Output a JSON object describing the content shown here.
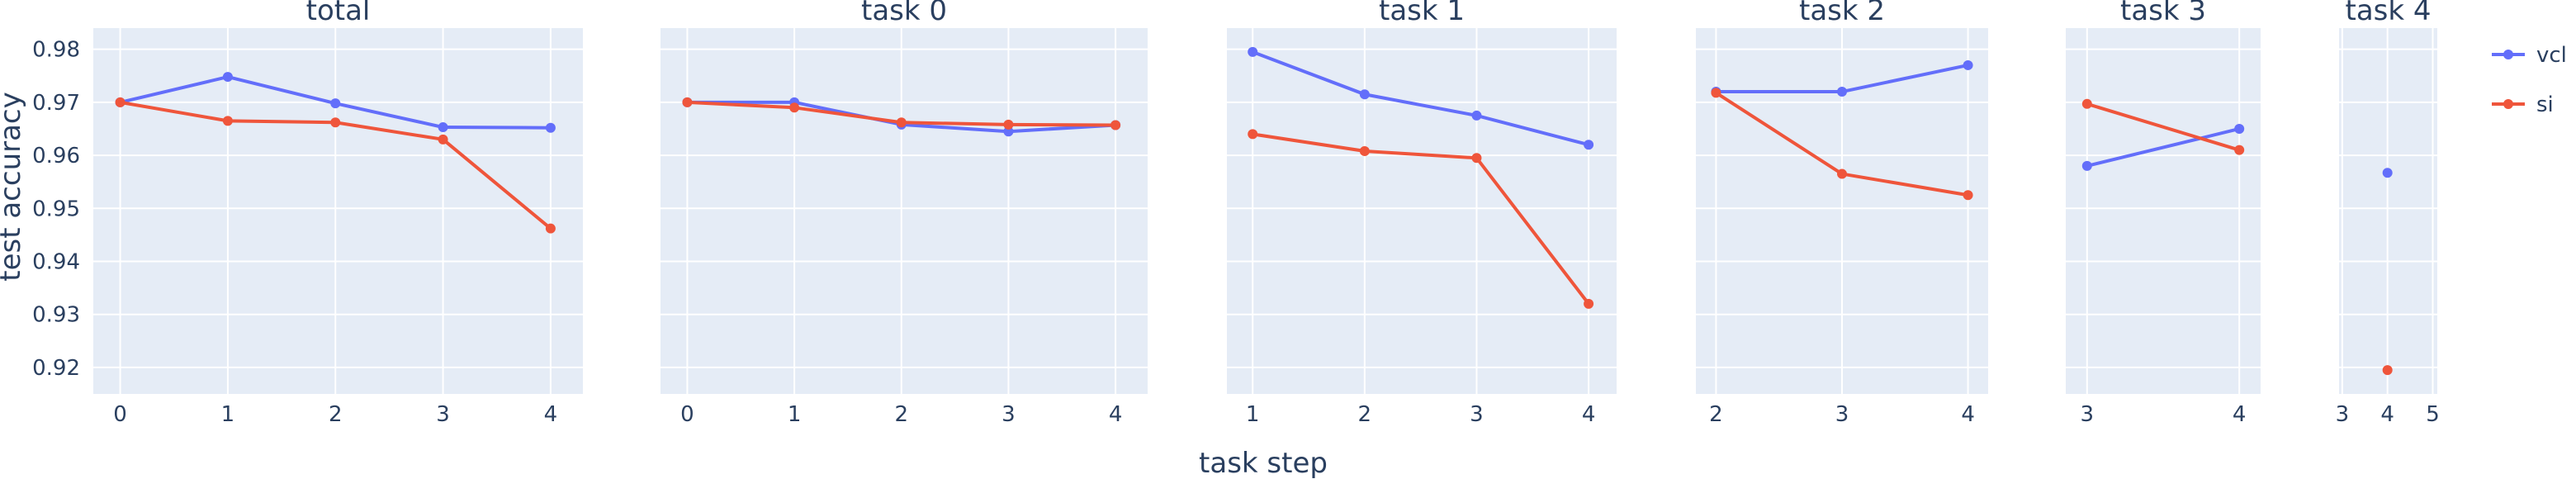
{
  "chart_data": {
    "type": "line",
    "ylabel": "test accuracy",
    "xlabel": "task step",
    "ylim": [
      0.915,
      0.984
    ],
    "yticks": [
      0.92,
      0.93,
      0.94,
      0.95,
      0.96,
      0.97,
      0.98
    ],
    "legend": {
      "placement": "top-right",
      "entries": [
        {
          "name": "vcl",
          "color": "#636efa"
        },
        {
          "name": "si",
          "color": "#ef553b"
        }
      ]
    },
    "panels": [
      {
        "title": "total",
        "xlim": [
          -0.25,
          4.3
        ],
        "xticks": [
          0,
          1,
          2,
          3,
          4
        ],
        "series": [
          {
            "name": "vcl",
            "color": "#636efa",
            "x": [
              0,
              1,
              2,
              3,
              4
            ],
            "y": [
              0.97,
              0.9748,
              0.9698,
              0.9653,
              0.9652
            ]
          },
          {
            "name": "si",
            "color": "#ef553b",
            "x": [
              0,
              1,
              2,
              3,
              4
            ],
            "y": [
              0.97,
              0.9665,
              0.9662,
              0.963,
              0.9462
            ]
          }
        ]
      },
      {
        "title": "task 0",
        "xlim": [
          -0.25,
          4.3
        ],
        "xticks": [
          0,
          1,
          2,
          3,
          4
        ],
        "series": [
          {
            "name": "vcl",
            "color": "#636efa",
            "x": [
              0,
              1,
              2,
              3,
              4
            ],
            "y": [
              0.97,
              0.97,
              0.9658,
              0.9645,
              0.9657
            ]
          },
          {
            "name": "si",
            "color": "#ef553b",
            "x": [
              0,
              1,
              2,
              3,
              4
            ],
            "y": [
              0.97,
              0.969,
              0.9662,
              0.9658,
              0.9657
            ]
          }
        ]
      },
      {
        "title": "task 1",
        "xlim": [
          0.77,
          4.25
        ],
        "xticks": [
          1,
          2,
          3,
          4
        ],
        "series": [
          {
            "name": "vcl",
            "color": "#636efa",
            "x": [
              1,
              2,
              3,
              4
            ],
            "y": [
              0.9795,
              0.9715,
              0.9675,
              0.962
            ]
          },
          {
            "name": "si",
            "color": "#ef553b",
            "x": [
              1,
              2,
              3,
              4
            ],
            "y": [
              0.964,
              0.9608,
              0.9595,
              0.932
            ]
          }
        ]
      },
      {
        "title": "task 2",
        "xlim": [
          1.84,
          4.16
        ],
        "xticks": [
          2,
          3,
          4
        ],
        "series": [
          {
            "name": "vcl",
            "color": "#636efa",
            "x": [
              2,
              3,
              4
            ],
            "y": [
              0.972,
              0.972,
              0.977
            ]
          },
          {
            "name": "si",
            "color": "#ef553b",
            "x": [
              2,
              3,
              4
            ],
            "y": [
              0.9718,
              0.9565,
              0.9525
            ]
          }
        ]
      },
      {
        "title": "task 3",
        "xlim": [
          2.86,
          4.14
        ],
        "xticks": [
          3,
          4
        ],
        "series": [
          {
            "name": "vcl",
            "color": "#636efa",
            "x": [
              3,
              4
            ],
            "y": [
              0.958,
              0.965
            ]
          },
          {
            "name": "si",
            "color": "#ef553b",
            "x": [
              3,
              4
            ],
            "y": [
              0.9697,
              0.961
            ]
          }
        ]
      },
      {
        "title": "task 4",
        "xlim": [
          2.93,
          5.1
        ],
        "xticks": [
          3,
          4,
          5
        ],
        "series": [
          {
            "name": "vcl",
            "color": "#636efa",
            "x": [
              4
            ],
            "y": [
              0.9567
            ]
          },
          {
            "name": "si",
            "color": "#ef553b",
            "x": [
              4
            ],
            "y": [
              0.9195
            ]
          }
        ]
      }
    ]
  }
}
